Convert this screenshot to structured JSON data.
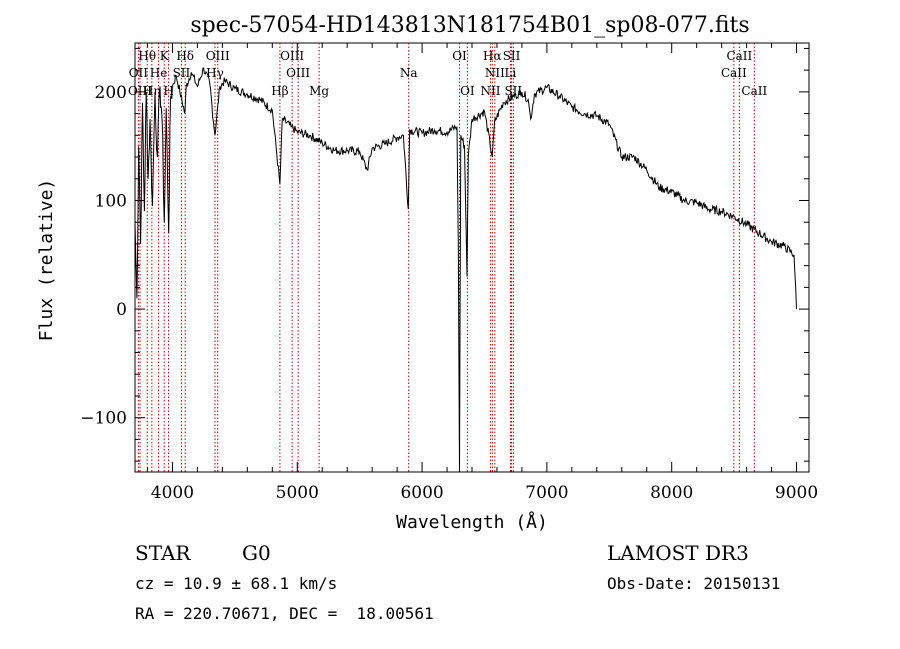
{
  "chart_data": {
    "type": "line",
    "title": "spec-57054-HD143813N181754B01_sp08-077.fits",
    "xlabel": "Wavelength (Å)",
    "ylabel": "Flux (relative)",
    "xlim": [
      3700,
      9100
    ],
    "ylim": [
      -150,
      245
    ],
    "grid": false,
    "x_ticks": [
      4000,
      5000,
      6000,
      7000,
      8000,
      9000
    ],
    "x_tick_labels": [
      "4000",
      "5000",
      "6000",
      "7000",
      "8000",
      "9000"
    ],
    "y_ticks": [
      -100,
      0,
      100,
      200
    ],
    "y_tick_labels": [
      "−100",
      "0",
      "100",
      "200"
    ],
    "series": [
      {
        "points": [
          [
            3700,
            80
          ],
          [
            3715,
            10
          ],
          [
            3730,
            150
          ],
          [
            3745,
            60
          ],
          [
            3760,
            190
          ],
          [
            3775,
            90
          ],
          [
            3790,
            200
          ],
          [
            3805,
            120
          ],
          [
            3820,
            175
          ],
          [
            3840,
            95
          ],
          [
            3860,
            200
          ],
          [
            3880,
            140
          ],
          [
            3900,
            205
          ],
          [
            3915,
            180
          ],
          [
            3935,
            80
          ],
          [
            3950,
            185
          ],
          [
            3970,
            70
          ],
          [
            3985,
            195
          ],
          [
            4000,
            205
          ],
          [
            4030,
            215
          ],
          [
            4060,
            200
          ],
          [
            4100,
            180
          ],
          [
            4110,
            205
          ],
          [
            4150,
            218
          ],
          [
            4200,
            205
          ],
          [
            4250,
            222
          ],
          [
            4300,
            207
          ],
          [
            4340,
            160
          ],
          [
            4380,
            205
          ],
          [
            4420,
            210
          ],
          [
            4500,
            203
          ],
          [
            4600,
            198
          ],
          [
            4700,
            193
          ],
          [
            4800,
            183
          ],
          [
            4861,
            115
          ],
          [
            4880,
            175
          ],
          [
            4950,
            168
          ],
          [
            5000,
            163
          ],
          [
            5100,
            160
          ],
          [
            5200,
            153
          ],
          [
            5300,
            146
          ],
          [
            5400,
            146
          ],
          [
            5500,
            145
          ],
          [
            5560,
            128
          ],
          [
            5600,
            148
          ],
          [
            5700,
            152
          ],
          [
            5800,
            158
          ],
          [
            5850,
            160
          ],
          [
            5890,
            92
          ],
          [
            5900,
            165
          ],
          [
            6000,
            162
          ],
          [
            6100,
            165
          ],
          [
            6200,
            163
          ],
          [
            6280,
            168
          ],
          [
            6290,
            60
          ],
          [
            6300,
            -150
          ],
          [
            6310,
            160
          ],
          [
            6340,
            150
          ],
          [
            6360,
            30
          ],
          [
            6370,
            140
          ],
          [
            6400,
            175
          ],
          [
            6500,
            182
          ],
          [
            6563,
            140
          ],
          [
            6580,
            172
          ],
          [
            6650,
            190
          ],
          [
            6750,
            197
          ],
          [
            6800,
            200
          ],
          [
            6850,
            193
          ],
          [
            6870,
            175
          ],
          [
            6900,
            198
          ],
          [
            7000,
            204
          ],
          [
            7100,
            196
          ],
          [
            7200,
            186
          ],
          [
            7300,
            180
          ],
          [
            7400,
            178
          ],
          [
            7500,
            170
          ],
          [
            7600,
            140
          ],
          [
            7700,
            140
          ],
          [
            7800,
            128
          ],
          [
            7900,
            112
          ],
          [
            8000,
            108
          ],
          [
            8100,
            100
          ],
          [
            8200,
            98
          ],
          [
            8300,
            92
          ],
          [
            8400,
            90
          ],
          [
            8500,
            85
          ],
          [
            8600,
            78
          ],
          [
            8700,
            70
          ],
          [
            8800,
            62
          ],
          [
            8900,
            58
          ],
          [
            8980,
            50
          ],
          [
            9000,
            0
          ]
        ]
      }
    ],
    "lines": [
      {
        "label": "Hθ",
        "wl": 3798,
        "tier": 0
      },
      {
        "label": "OII",
        "wl": 3727,
        "tier": 1
      },
      {
        "label": "OIII",
        "wl": 3740,
        "tier": 2
      },
      {
        "label": "He",
        "wl": 3889,
        "tier": 1
      },
      {
        "label": "Hη",
        "wl": 3835,
        "tier": 2
      },
      {
        "label": "K",
        "wl": 3934,
        "tier": 0
      },
      {
        "label": "H",
        "wl": 3969,
        "tier": 2
      },
      {
        "label": "Hδ",
        "wl": 4102,
        "tier": 0
      },
      {
        "label": "SII",
        "wl": 4072,
        "tier": 1
      },
      {
        "label": "OIII",
        "wl": 4363,
        "tier": 0
      },
      {
        "label": "Hγ",
        "wl": 4341,
        "tier": 1
      },
      {
        "label": "OIII",
        "wl": 4959,
        "tier": 0
      },
      {
        "label": "OIII",
        "wl": 5007,
        "tier": 1
      },
      {
        "label": "Hβ",
        "wl": 4861,
        "tier": 2
      },
      {
        "label": "Mg",
        "wl": 5175,
        "tier": 2
      },
      {
        "label": "Na",
        "wl": 5893,
        "tier": 1
      },
      {
        "label": "OI",
        "wl": 6300,
        "tier": 0
      },
      {
        "label": "OI",
        "wl": 6363,
        "tier": 2
      },
      {
        "label": "Hα",
        "wl": 6563,
        "tier": 0
      },
      {
        "label": "NII",
        "wl": 6583,
        "tier": 1
      },
      {
        "label": "NII",
        "wl": 6548,
        "tier": 2
      },
      {
        "label": "SII",
        "wl": 6717,
        "tier": 0
      },
      {
        "label": "Li",
        "wl": 6708,
        "tier": 1
      },
      {
        "label": "SII",
        "wl": 6731,
        "tier": 2
      },
      {
        "label": "CaII",
        "wl": 8542,
        "tier": 0
      },
      {
        "label": "CaII",
        "wl": 8498,
        "tier": 1
      },
      {
        "label": "CaII",
        "wl": 8662,
        "tier": 2
      }
    ]
  },
  "info": {
    "class_label": "STAR",
    "subclass_label": "G0",
    "survey_label": "LAMOST DR3",
    "cz_text": "cz = 10.9 ± 68.1 km/s",
    "obs_date_text": "Obs-Date: 20150131",
    "radec_text": "RA = 220.70671, DEC =  18.00561"
  }
}
